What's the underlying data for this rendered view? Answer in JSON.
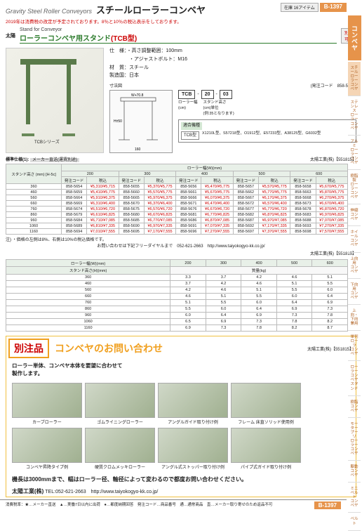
{
  "header": {
    "en": "Gravity Steel Roller Conveyors",
    "jp": "スチールローラーコンベヤ",
    "badge": "在庫\n16アイテム",
    "page": "B-1397"
  },
  "notice": "2019年は消費税の改定が予定されております。8％と10％の税込表示をしております。",
  "section": {
    "brand": "太陽",
    "sub": "Stand for Conveyor",
    "title": "ローラーコンベヤ用スタンド",
    "model": "(TCB型)",
    "option": "別作\n可能"
  },
  "spec": {
    "l1": "仕　様：・高さ調整範囲：100mm",
    "l2": "　　　　・アジャストボルト：M16",
    "l3": "材　質：スチール",
    "l4": "製造国：日本",
    "series": "TCBシリーズ"
  },
  "diagram_label": "寸法図",
  "code": {
    "label": "(発注コード　858-5654)",
    "parts": [
      "TCB",
      "-",
      "20",
      "-",
      "03"
    ],
    "desc": [
      "ローラー幅",
      "(cm)",
      "スタンド高さ",
      "(cm)単位",
      "(例:35となります)"
    ]
  },
  "compat": {
    "title": "適合機種",
    "key": "TCB型",
    "val": "X1210L型、S57218型、O1912型、E57233型、A38125型、G6032型"
  },
  "tbl1_note": "太陽工業(株)【551815】",
  "tbl1": {
    "caption": "標準仕様(1):",
    "ship": "メーカー直送(運賃別途)",
    "col_header": "ローラー幅(W)(mm)",
    "widths": [
      "200",
      "300",
      "400",
      "500",
      "600"
    ],
    "sub_headers": [
      "発注コード",
      "税込",
      "発注コード",
      "税込",
      "発注コード",
      "税込",
      "発注コード",
      "税込",
      "発注コード",
      "税込"
    ],
    "row_label": "スタンド高さ\n(mm) [H-5c]",
    "rows": [
      {
        "h": "360",
        "c": [
          "858-5654",
          "¥5,310/¥5,715",
          "858-5655",
          "¥5,370/¥5,775",
          "858-5656",
          "¥5,470/¥5,775",
          "858-5657",
          "¥5,570/¥5,775",
          "858-5658",
          "¥5,670/¥5,775"
        ]
      },
      {
        "h": "460",
        "c": [
          "858-5659",
          "¥5,410/¥5,775",
          "858-5660",
          "¥5,570/¥5,775",
          "858-5661",
          "¥5,670/¥5,775",
          "858-5662",
          "¥5,770/¥5,775",
          "858-5663",
          "¥5,870/¥5,775"
        ]
      },
      {
        "h": "560",
        "c": [
          "858-5664",
          "¥5,910/¥6,375",
          "858-5665",
          "¥5,970/¥6,375",
          "858-5666",
          "¥6,070/¥6,375",
          "858-5667",
          "¥6,170/¥6,375",
          "858-5668",
          "¥6,270/¥6,375"
        ]
      },
      {
        "h": "660",
        "c": [
          "858-5669",
          "¥6,310/¥6,400",
          "858-5670",
          "¥6,370/¥6,400",
          "858-5671",
          "¥6,470/¥6,400",
          "858-5672",
          "¥6,570/¥6,400",
          "858-5673",
          "¥6,670/¥6,400"
        ]
      },
      {
        "h": "760",
        "c": [
          "858-5674",
          "¥6,510/¥6,720",
          "858-5675",
          "¥6,570/¥6,720",
          "858-5676",
          "¥6,670/¥6,720",
          "858-5677",
          "¥6,770/¥6,720",
          "858-5678",
          "¥6,870/¥6,720"
        ]
      },
      {
        "h": "860",
        "c": [
          "858-5679",
          "¥6,610/¥6,825",
          "858-5680",
          "¥6,670/¥6,825",
          "858-5681",
          "¥6,770/¥6,825",
          "858-5682",
          "¥6,870/¥6,825",
          "858-5683",
          "¥6,970/¥6,825"
        ]
      },
      {
        "h": "960",
        "c": [
          "858-5684",
          "¥6,710/¥7,085",
          "858-5685",
          "¥6,770/¥7,085",
          "858-5686",
          "¥6,870/¥7,085",
          "858-5687",
          "¥6,970/¥7,085",
          "858-5688",
          "¥7,070/¥7,085"
        ]
      },
      {
        "h": "1060",
        "c": [
          "858-5689",
          "¥6,810/¥7,335",
          "858-5690",
          "¥6,970/¥7,335",
          "858-5691",
          "¥7,070/¥7,335",
          "858-5692",
          "¥7,170/¥7,335",
          "858-5693",
          "¥7,270/¥7,335"
        ]
      },
      {
        "h": "1160",
        "c": [
          "858-5694",
          "¥7,010/¥7,555",
          "858-5695",
          "¥7,170/¥7,555",
          "858-5696",
          "¥7,270/¥7,555",
          "858-5697",
          "¥7,370/¥7,555",
          "858-5698",
          "¥7,570/¥7,555"
        ]
      }
    ]
  },
  "tbl1_notes": "注) ・価格の左側は8%、右側は10%の税込価格です。",
  "phone_note": "お問い合わせは下記フリーダイヤルまで　052-621-2663　http://www.taiyokogyo-kk.co.jp/",
  "tbl2": {
    "col_header": "ローラー幅(W)(mm)",
    "row_header": "スタンド高さ(H)(mm)",
    "widths": [
      "200",
      "300",
      "400",
      "500",
      "600"
    ],
    "heights": [
      "360",
      "460",
      "560",
      "660",
      "760",
      "860",
      "960",
      "1060",
      "1160"
    ],
    "weights": [
      [
        "3.3",
        "3.7",
        "4.2",
        "4.6",
        "5.1"
      ],
      [
        "3.7",
        "4.2",
        "4.6",
        "5.1",
        "5.5"
      ],
      [
        "4.2",
        "4.6",
        "5.1",
        "5.5",
        "6.0"
      ],
      [
        "4.6",
        "5.1",
        "5.5",
        "6.0",
        "6.4"
      ],
      [
        "5.1",
        "5.5",
        "6.0",
        "6.4",
        "6.9"
      ],
      [
        "5.5",
        "6.0",
        "6.4",
        "6.9",
        "7.3"
      ],
      [
        "6.0",
        "6.4",
        "6.9",
        "7.3",
        "7.8"
      ],
      [
        "6.5",
        "6.9",
        "7.3",
        "7.8",
        "8.2"
      ],
      [
        "6.9",
        "7.3",
        "7.8",
        "8.2",
        "8.7"
      ]
    ]
  },
  "inquiry": {
    "badge": "別注品",
    "title": "コンベヤのお問い合わせ",
    "code": "太陽工業(株)【551815】",
    "sub": "ローラー単体、コンベヤ本体を要望に合わせて\n製作します。",
    "items": [
      "カーブローラー",
      "ゴムライニングローラー",
      "アングルガイド取り付け例",
      "フレーム 床直ソリッド使用例",
      "コンベヤ昇降タイプ例",
      "硬質クロムメッキローラー",
      "アングル式ストッパー取り付け例",
      "パイプ式ガイド取り付け例"
    ],
    "note": "機長は3000mmまで、幅はローラー径、軸径によって変わるので都度お問い合わせください。",
    "contact_label": "太陽工業(株)",
    "contact": "TEL:052-621-2663　http://www.taiyokogyo-kk.co.jp/"
  },
  "sidebar": {
    "main": "コンベヤ",
    "items": [
      "スチール\nローラーコンベヤ",
      "ステンレス\nローラーコンベヤ",
      "アルミ\nローラーコンベヤ",
      "樹脂製\nローラーコンベヤ",
      "伸縮\nコンベヤ",
      "ホイール\nコンベヤ",
      "上向用\nコンベヤ",
      "下向用\nコンベヤ",
      "上向・下向\n兼用",
      "単列ローラ\nコンベヤ",
      "ローラー\nコンベヤ\nスタンド",
      "樹脂\nコンベヤ",
      "モータープーリ\nローラーコンベヤ",
      "駆動\nコンベヤ",
      "ミニベルト\nコンベヤ",
      "ベルト"
    ]
  },
  "footer": {
    "left": "消費税率：★…メーカー直送　▲…実働7日以内に出荷　●…都度納期回答　発注コード…商品番号　通…通常商品　直…メーカー取り寄せのため返品不可",
    "page": "B-1397"
  }
}
